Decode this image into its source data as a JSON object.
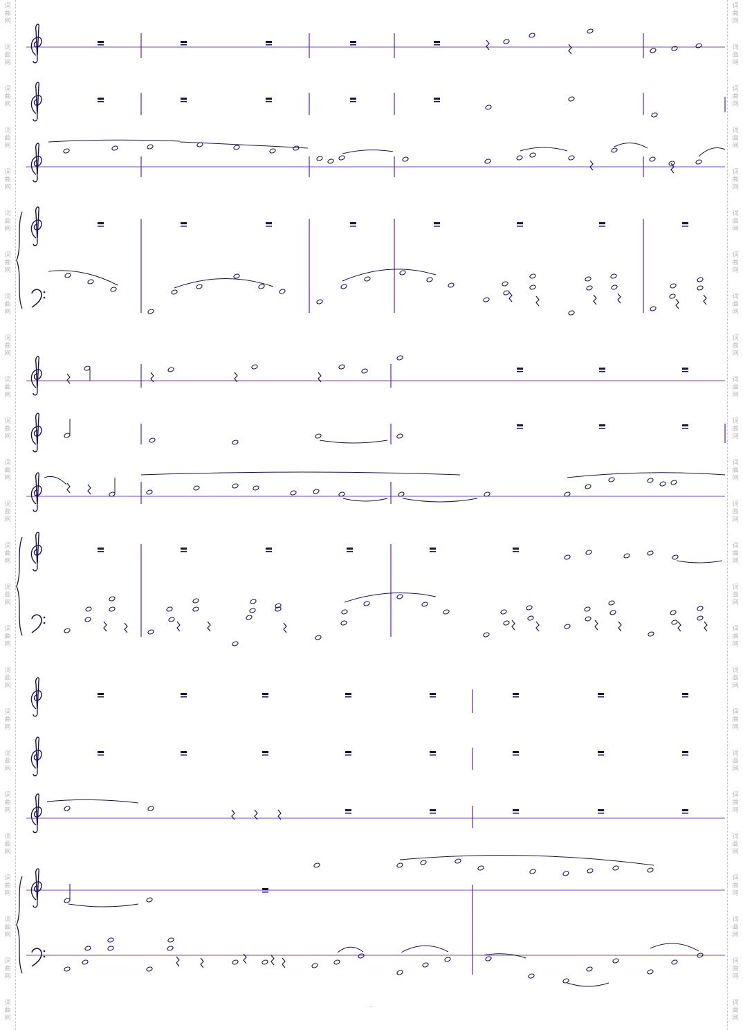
{
  "watermark": {
    "text": "词\n曲\n网",
    "color": "#b7b7b7"
  },
  "colors": {
    "staff_line": "#7b3fd6",
    "barline": "#5a1fb0",
    "notation": "#1a1050"
  },
  "footer": {
    "text": ".."
  },
  "score": {
    "icons": [
      "treble-clef-icon",
      "bass-clef-icon",
      "brace-icon",
      "whole-rest-icon",
      "quarter-rest-icon",
      "note-head-icon",
      "slur-icon"
    ]
  }
}
